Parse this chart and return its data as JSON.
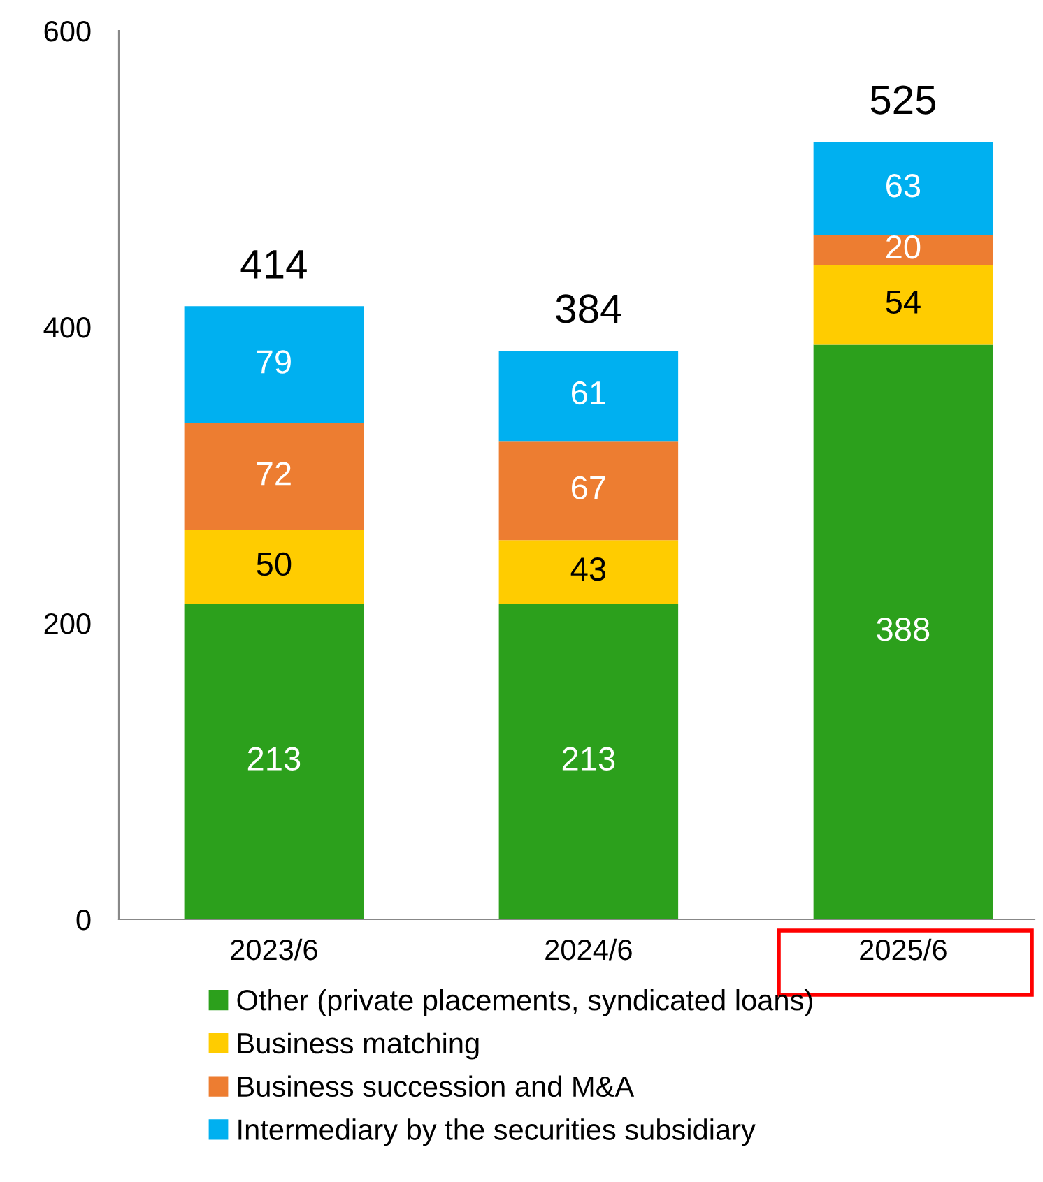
{
  "chart_data": {
    "type": "bar",
    "stacked": true,
    "categories": [
      "2023/6",
      "2024/6",
      "2025/6"
    ],
    "series": [
      {
        "name": "Other (private placements, syndicated loans)",
        "color": "#2ca01c",
        "values": [
          213,
          213,
          388
        ]
      },
      {
        "name": "Business matching",
        "color": "#ffcc00",
        "values": [
          50,
          43,
          54
        ]
      },
      {
        "name": "Business succession and M&A",
        "color": "#ed7d31",
        "values": [
          72,
          67,
          20
        ]
      },
      {
        "name": "Intermediary by the securities subsidiary",
        "color": "#00b0f0",
        "values": [
          79,
          61,
          63
        ]
      }
    ],
    "totals": [
      "414",
      "384",
      "525"
    ],
    "data_labels": true,
    "ylim": [
      0,
      600
    ],
    "yticks": [
      0,
      200,
      400,
      600
    ],
    "grid": false,
    "legend": "bottom"
  }
}
